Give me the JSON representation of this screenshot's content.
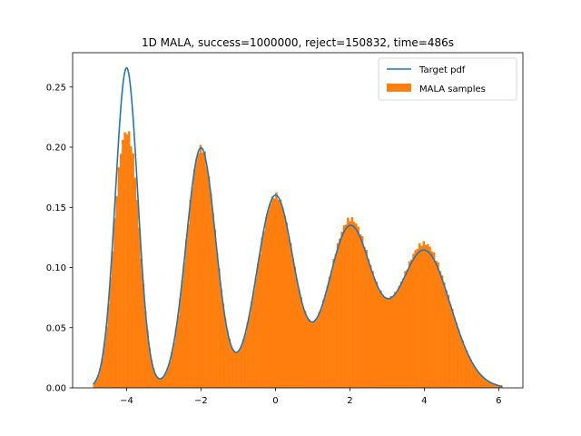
{
  "chart_data": {
    "type": "bar",
    "title": "1D MALA, success=1000000, reject=150832, time=486s",
    "xlim": [
      -5.45,
      6.65
    ],
    "ylim": [
      0,
      0.2785
    ],
    "xticks": [
      -4,
      -2,
      0,
      2,
      4,
      6
    ],
    "xtick_labels": [
      "−4",
      "−2",
      "0",
      "2",
      "4",
      "6"
    ],
    "yticks": [
      0.0,
      0.05,
      0.1,
      0.15,
      0.2,
      0.25
    ],
    "ytick_labels": [
      "0.00",
      "0.05",
      "0.10",
      "0.15",
      "0.20",
      "0.25"
    ],
    "legend": {
      "placement": "top-right",
      "entries": [
        {
          "label": "Target pdf",
          "kind": "line",
          "color": "#1f77b4"
        },
        {
          "label": "MALA samples",
          "kind": "patch",
          "color": "#ff7f0e"
        }
      ]
    },
    "target_pdf": {
      "name": "Target pdf",
      "color": "#1f77b4",
      "x_range": [
        -4.9,
        6.1
      ],
      "components": [
        {
          "mean": -4,
          "sd": 0.3,
          "weight": 0.2
        },
        {
          "mean": -2,
          "sd": 0.4,
          "weight": 0.2
        },
        {
          "mean": 0,
          "sd": 0.5,
          "weight": 0.2
        },
        {
          "mean": 2,
          "sd": 0.6,
          "weight": 0.2
        },
        {
          "mean": 4,
          "sd": 0.7,
          "weight": 0.2
        }
      ]
    },
    "histogram": {
      "name": "MALA samples",
      "color": "#ff7f0e",
      "x_start": -4.9,
      "x_end": 6.1,
      "bins": 200
    }
  }
}
